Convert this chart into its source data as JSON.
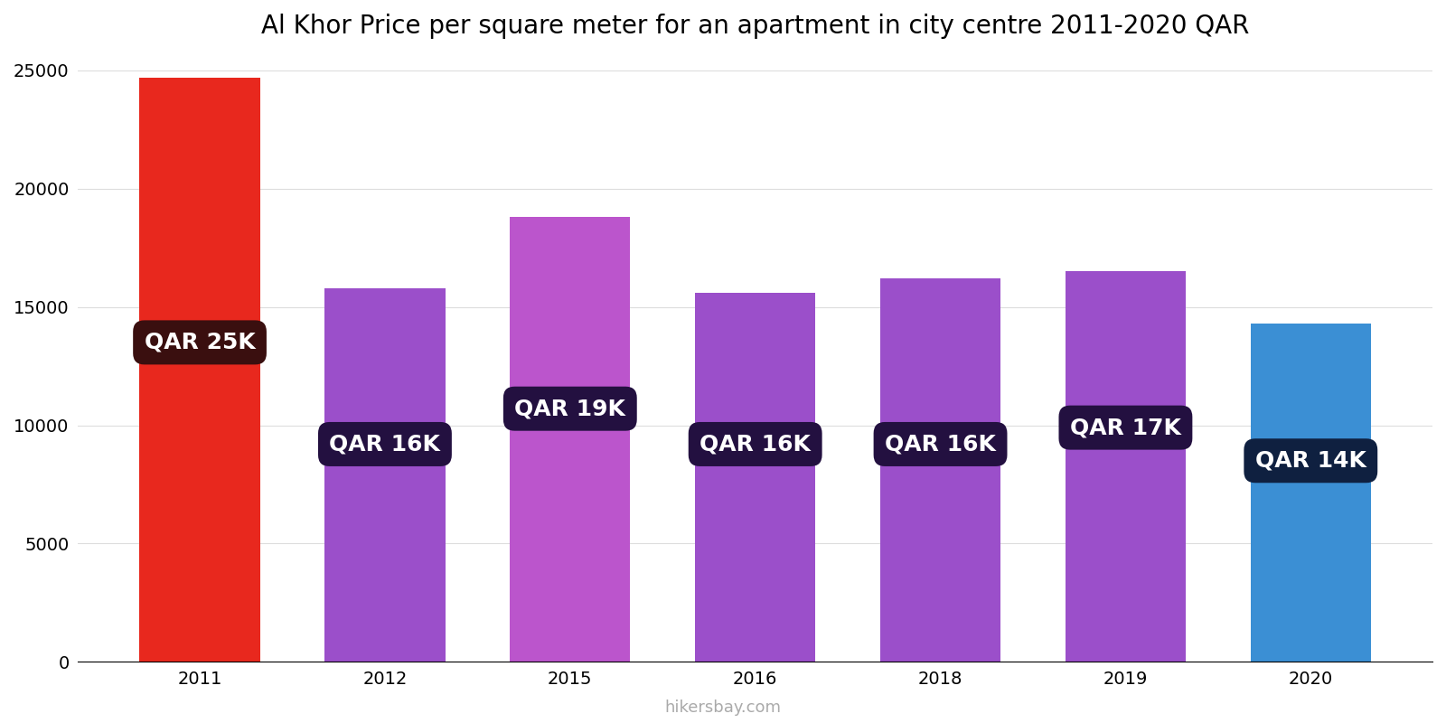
{
  "years": [
    "2011",
    "2012",
    "2015",
    "2016",
    "2018",
    "2019",
    "2020"
  ],
  "values": [
    24700,
    15800,
    18800,
    15600,
    16200,
    16500,
    14300
  ],
  "bar_colors": [
    "#e8281e",
    "#9b4fca",
    "#bb55cc",
    "#9b4fca",
    "#9b4fca",
    "#9b4fca",
    "#3b8fd4"
  ],
  "label_bg_colors": [
    "#3a0f0f",
    "#231040",
    "#231040",
    "#231040",
    "#231040",
    "#231040",
    "#0f2040"
  ],
  "labels": [
    "QAR 25K",
    "QAR 16K",
    "QAR 19K",
    "QAR 16K",
    "QAR 16K",
    "QAR 17K",
    "QAR 14K"
  ],
  "label_y_positions": [
    13500,
    9200,
    10700,
    9200,
    9200,
    9900,
    8500
  ],
  "title": "Al Khor Price per square meter for an apartment in city centre 2011-2020 QAR",
  "ylim": [
    0,
    25500
  ],
  "yticks": [
    0,
    5000,
    10000,
    15000,
    20000,
    25000
  ],
  "watermark": "hikersbay.com",
  "title_fontsize": 20,
  "label_fontsize": 18,
  "tick_fontsize": 14,
  "watermark_fontsize": 13
}
